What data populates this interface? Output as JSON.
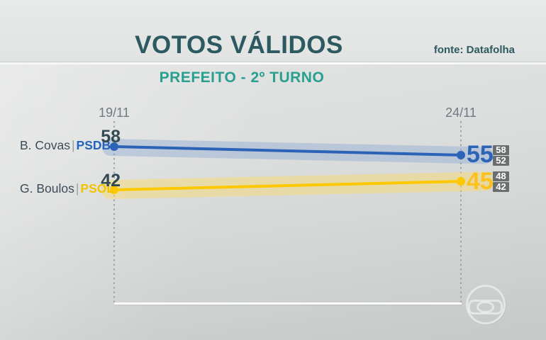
{
  "header": {
    "title": "VOTOS VÁLIDOS",
    "source": "fonte: Datafolha",
    "subtitle": "PREFEITO - 2º TURNO"
  },
  "chart_data": {
    "type": "line",
    "title": "VOTOS VÁLIDOS",
    "subtitle": "PREFEITO - 2º TURNO",
    "source": "fonte: Datafolha",
    "x": [
      "19/11",
      "24/11"
    ],
    "separator": "|",
    "series": [
      {
        "name": "B. Covas",
        "party": "PSDB",
        "color": "#2b63b6",
        "values": [
          58,
          55
        ],
        "error_range": [
          58,
          52
        ]
      },
      {
        "name": "G. Boulos",
        "party": "PSOL",
        "color": "#fdc800",
        "values": [
          42,
          45
        ],
        "error_range": [
          48,
          42
        ]
      }
    ],
    "ylim": [
      0,
      100
    ],
    "grid": "dotted vertical lines at each survey date",
    "legend_position": "left of lines"
  },
  "colors": {
    "covas_blue": "#2b63b6",
    "boulos_yellow": "#fdc800",
    "title_teal": "#2c5a60",
    "subtitle_teal": "#29a08f",
    "badge_gray": "#6a6e6f",
    "start_value_dark": "#344a52",
    "background_gray": "#dfe1e0"
  },
  "watermark_icon": "globo-logo"
}
